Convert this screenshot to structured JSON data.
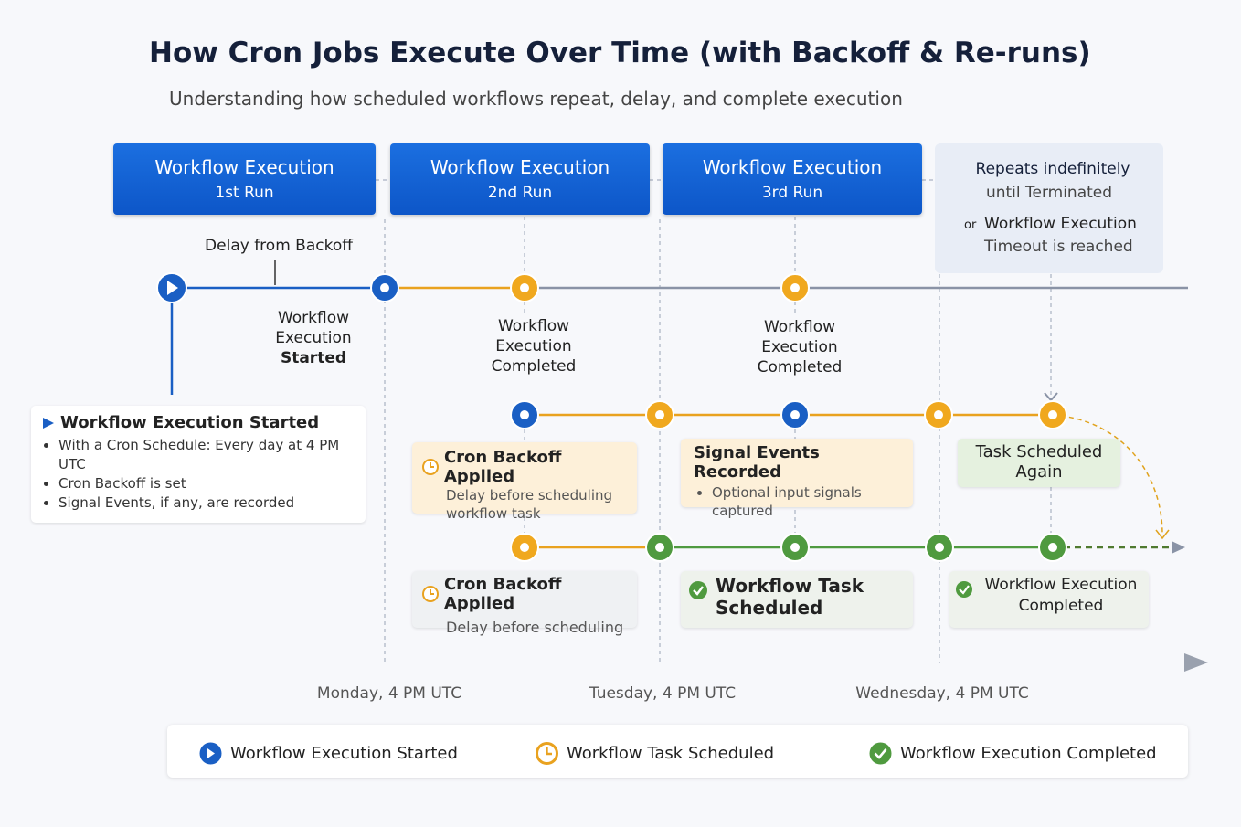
{
  "title": "How Cron Jobs Execute Over Time (with Backoff & Re-runs)",
  "subtitle": "Understanding how scheduled workflows repeat, delay, and complete execution",
  "runs": [
    {
      "title": "Workflow Execution",
      "label": "1st Run"
    },
    {
      "title": "Workflow Execution",
      "label": "2nd Run"
    },
    {
      "title": "Workflow Execution",
      "label": "3rd Run"
    }
  ],
  "repeat_note": {
    "line1": "Repeats indefinitely",
    "line2": "until Terminated",
    "or": "or",
    "line3": "Workflow Execution",
    "line4": "Timeout is reached"
  },
  "annotations": {
    "delay": "Delay from Backoff",
    "started": [
      "Workflow",
      "Execution",
      "Started"
    ],
    "completed_1": [
      "Workflow",
      "Execution",
      "Completed"
    ],
    "completed_2": [
      "Workflow",
      "Execution",
      "Completed"
    ]
  },
  "start_card": {
    "title": "Workflow Execution Started",
    "bullets": [
      "With a Cron Schedule: Every day at 4 PM UTC",
      "Cron Backoff is set",
      "Signal Events, if any, are recorded"
    ]
  },
  "cards": {
    "backoff_1": {
      "title": "Cron Backoff Applied",
      "text": "Delay before scheduling workflow task"
    },
    "signal": {
      "title": "Signal Events Recorded",
      "text": "Optional input signals captured"
    },
    "task_again": {
      "title": "Task Scheduled Again"
    },
    "backoff_2": {
      "title": "Cron Backoff Applied",
      "text": "Delay before scheduling"
    },
    "task_scheduled": {
      "title": "Workflow Task Scheduled"
    },
    "exec_completed": {
      "title": "Workflow Execution Completed"
    }
  },
  "time_labels": [
    "Monday, 4 PM UTC",
    "Tuesday, 4 PM UTC",
    "Wednesday, 4 PM UTC"
  ],
  "legend": [
    "Workflow Execution Started",
    "Workflow Task Scheduled",
    "Workflow Execution Completed"
  ]
}
